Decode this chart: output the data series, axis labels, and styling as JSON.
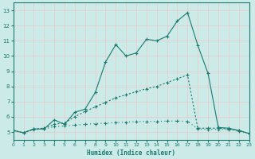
{
  "xlabel": "Humidex (Indice chaleur)",
  "xlim": [
    0,
    23
  ],
  "ylim": [
    4.5,
    13.5
  ],
  "yticks": [
    5,
    6,
    7,
    8,
    9,
    10,
    11,
    12,
    13
  ],
  "xticks": [
    0,
    1,
    2,
    3,
    4,
    5,
    6,
    7,
    8,
    9,
    10,
    11,
    12,
    13,
    14,
    15,
    16,
    17,
    18,
    19,
    20,
    21,
    22,
    23
  ],
  "bg_color": "#cceae8",
  "line_color": "#1a7a6e",
  "grid_color": "#e8c8c8",
  "series1_x": [
    0,
    1,
    2,
    3,
    4,
    5,
    6,
    7,
    8,
    9,
    10,
    11,
    12,
    13,
    14,
    15,
    16,
    17,
    18,
    19,
    20,
    21,
    22,
    23
  ],
  "series1_y": [
    5.1,
    4.95,
    5.2,
    5.2,
    5.8,
    5.5,
    6.3,
    6.5,
    7.6,
    9.6,
    10.75,
    10.0,
    10.2,
    11.1,
    11.0,
    11.3,
    12.3,
    12.85,
    10.7,
    8.85,
    5.3,
    5.25,
    5.1,
    4.9
  ],
  "series2_x": [
    0,
    1,
    2,
    3,
    4,
    5,
    6,
    7,
    8,
    9,
    10,
    11,
    12,
    13,
    14,
    15,
    16,
    17,
    18,
    19,
    20,
    21,
    22,
    23
  ],
  "series2_y": [
    5.1,
    4.95,
    5.2,
    5.25,
    5.5,
    5.6,
    6.0,
    6.35,
    6.65,
    6.95,
    7.25,
    7.45,
    7.65,
    7.85,
    8.0,
    8.25,
    8.5,
    8.75,
    5.25,
    5.25,
    5.25,
    5.2,
    5.1,
    4.9
  ],
  "series3_x": [
    0,
    1,
    2,
    3,
    4,
    5,
    6,
    7,
    8,
    9,
    10,
    11,
    12,
    13,
    14,
    15,
    16,
    17,
    18,
    19,
    20,
    21,
    22,
    23
  ],
  "series3_y": [
    5.1,
    4.95,
    5.15,
    5.2,
    5.35,
    5.4,
    5.45,
    5.5,
    5.55,
    5.58,
    5.62,
    5.65,
    5.68,
    5.7,
    5.7,
    5.72,
    5.72,
    5.7,
    5.2,
    5.18,
    5.18,
    5.15,
    5.05,
    4.9
  ]
}
